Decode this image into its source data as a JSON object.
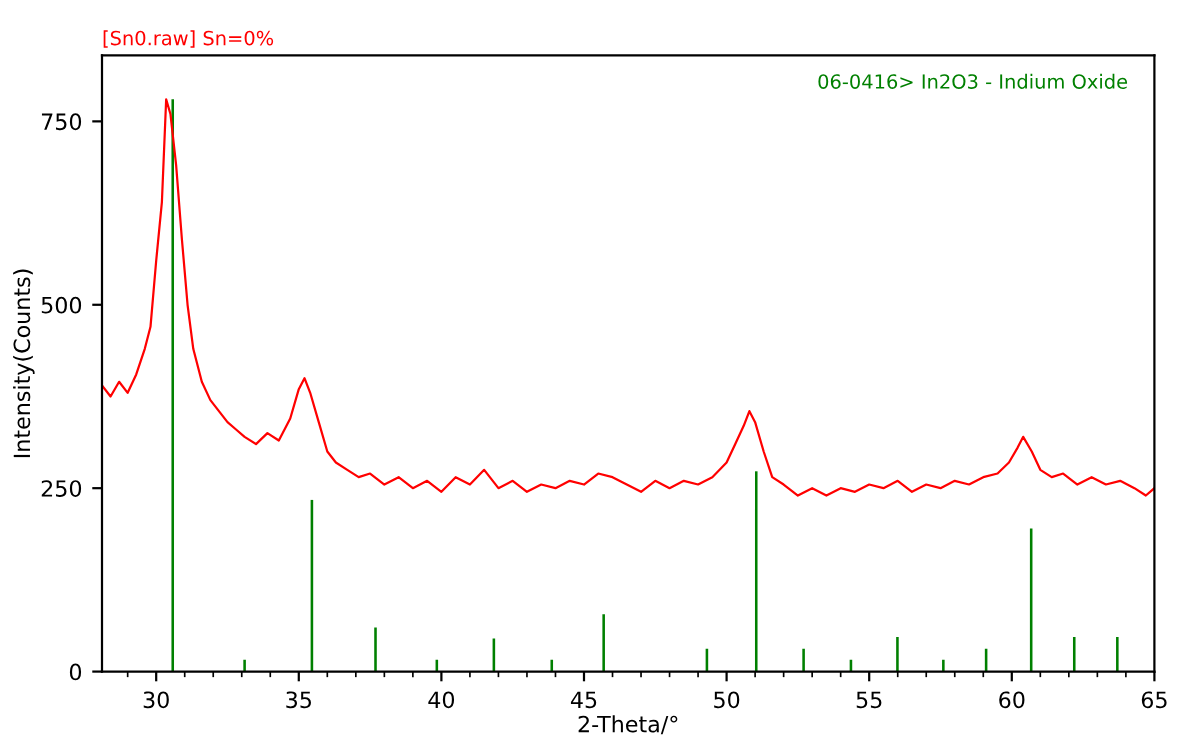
{
  "chart_data": {
    "type": "line",
    "xlabel": "2-Theta/°",
    "ylabel": "Intensity(Counts)",
    "xlim": [
      28.1,
      65
    ],
    "ylim": [
      0,
      840
    ],
    "xticks": [
      30,
      35,
      40,
      45,
      50,
      55,
      60,
      65
    ],
    "yticks": [
      0,
      250,
      500,
      750
    ],
    "grid": false,
    "legend": false,
    "series": [
      {
        "name": "[Sn0.raw] Sn=0%",
        "color": "#ff0000",
        "x": [
          28.1,
          28.4,
          28.7,
          29.0,
          29.3,
          29.6,
          29.8,
          30.0,
          30.2,
          30.35,
          30.5,
          30.7,
          30.9,
          31.1,
          31.3,
          31.6,
          31.9,
          32.2,
          32.5,
          32.8,
          33.1,
          33.5,
          33.9,
          34.3,
          34.7,
          35.0,
          35.2,
          35.4,
          35.7,
          36.0,
          36.3,
          36.7,
          37.1,
          37.5,
          38.0,
          38.5,
          39.0,
          39.5,
          40.0,
          40.5,
          41.0,
          41.5,
          42.0,
          42.5,
          43.0,
          43.5,
          44.0,
          44.5,
          45.0,
          45.5,
          46.0,
          46.5,
          47.0,
          47.5,
          48.0,
          48.5,
          49.0,
          49.5,
          50.0,
          50.3,
          50.6,
          50.8,
          51.0,
          51.3,
          51.6,
          52.0,
          52.5,
          53.0,
          53.5,
          54.0,
          54.5,
          55.0,
          55.5,
          56.0,
          56.5,
          57.0,
          57.5,
          58.0,
          58.5,
          59.0,
          59.5,
          59.9,
          60.2,
          60.4,
          60.7,
          61.0,
          61.4,
          61.8,
          62.3,
          62.8,
          63.3,
          63.8,
          64.3,
          64.7,
          65.0
        ],
        "values": [
          390,
          375,
          395,
          380,
          405,
          440,
          470,
          560,
          640,
          780,
          760,
          690,
          590,
          500,
          440,
          395,
          370,
          355,
          340,
          330,
          320,
          310,
          325,
          315,
          345,
          385,
          400,
          380,
          340,
          300,
          285,
          275,
          265,
          270,
          255,
          265,
          250,
          260,
          245,
          265,
          255,
          275,
          250,
          260,
          245,
          255,
          250,
          260,
          255,
          270,
          265,
          255,
          245,
          260,
          250,
          260,
          255,
          265,
          285,
          310,
          335,
          355,
          340,
          300,
          265,
          255,
          240,
          250,
          240,
          250,
          245,
          255,
          250,
          260,
          245,
          255,
          250,
          260,
          255,
          265,
          270,
          285,
          305,
          320,
          300,
          275,
          265,
          270,
          255,
          265,
          255,
          260,
          250,
          240,
          250
        ]
      },
      {
        "name": "06-0416> In2O3 - Indium Oxide",
        "color": "#008000",
        "type": "bar",
        "x": [
          30.58,
          33.1,
          35.46,
          37.69,
          39.84,
          41.84,
          43.87,
          45.69,
          49.31,
          51.04,
          52.7,
          54.36,
          55.99,
          57.6,
          59.1,
          60.68,
          62.19,
          63.7
        ],
        "values": [
          780,
          16,
          234,
          60,
          16,
          45,
          16,
          78,
          31,
          273,
          31,
          16,
          47,
          16,
          31,
          195,
          47,
          47
        ]
      }
    ]
  }
}
